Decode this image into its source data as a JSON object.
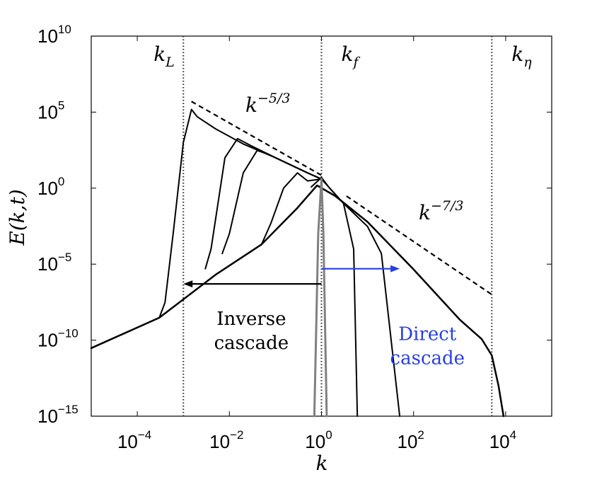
{
  "chart_data": {
    "type": "line",
    "xscale": "log",
    "yscale": "log",
    "xlabel": "k",
    "ylabel": "E(k,t)",
    "xlim": [
      1e-05,
      100000
    ],
    "ylim": [
      1e-15,
      10000000000.0
    ],
    "x_ticks": [
      {
        "value": 0.0001,
        "base": "10",
        "exp": "−4"
      },
      {
        "value": 0.01,
        "base": "10",
        "exp": "−2"
      },
      {
        "value": 1,
        "base": "10",
        "exp": "0"
      },
      {
        "value": 100,
        "base": "10",
        "exp": "2"
      },
      {
        "value": 10000,
        "base": "10",
        "exp": "4"
      }
    ],
    "y_ticks": [
      {
        "value": 1e-15,
        "base": "10",
        "exp": "−15"
      },
      {
        "value": 1e-10,
        "base": "10",
        "exp": "−10"
      },
      {
        "value": 1e-05,
        "base": "10",
        "exp": "−5"
      },
      {
        "value": 1,
        "base": "10",
        "exp": "0"
      },
      {
        "value": 100000,
        "base": "10",
        "exp": "5"
      },
      {
        "value": 10000000000.0,
        "base": "10",
        "exp": "10"
      }
    ],
    "vertical_lines": [
      {
        "name": "k_L",
        "label": "k",
        "sub": "L",
        "x": 0.001
      },
      {
        "name": "k_f",
        "label": "k",
        "sub": "f",
        "x": 1
      },
      {
        "name": "k_eta",
        "label": "k",
        "sub": "η",
        "x": 5000
      }
    ],
    "power_laws": [
      {
        "label": "k",
        "exp": "−5/3",
        "x": [
          0.0015,
          1
        ],
        "y": [
          500000,
          7
        ]
      },
      {
        "label": "k",
        "exp": "−7/3",
        "x": [
          3.5,
          5000
        ],
        "y": [
          0.3,
          1e-07
        ]
      }
    ],
    "series": [
      {
        "color": "#000000",
        "width": 2.5,
        "points": [
          [
            1e-05,
            3e-11
          ],
          [
            0.0003,
            3e-09
          ],
          [
            0.005,
            2e-06
          ],
          [
            0.05,
            0.0002
          ],
          [
            0.3,
            0.05
          ],
          [
            0.8,
            1.5
          ],
          [
            2,
            0.3
          ],
          [
            10,
            0.006
          ],
          [
            100,
            4.5e-06
          ],
          [
            1000,
            2.3e-09
          ],
          [
            3000,
            1.2e-10
          ],
          [
            5000,
            1e-11
          ],
          [
            7000,
            1e-13
          ],
          [
            9000,
            1e-15
          ]
        ]
      },
      {
        "color": "#000000",
        "width": 2,
        "points": [
          [
            1e-05,
            3e-11
          ],
          [
            0.0003,
            3e-09
          ],
          [
            0.0004,
            3e-08
          ],
          [
            0.0006,
            0.001
          ],
          [
            0.001,
            1000
          ],
          [
            0.0015,
            150000
          ],
          [
            0.002,
            50000
          ],
          [
            0.005,
            8000
          ],
          [
            0.02,
            800
          ],
          [
            0.1,
            100
          ],
          [
            0.5,
            10
          ],
          [
            1,
            4
          ]
        ]
      },
      {
        "color": "#000000",
        "width": 2,
        "points": [
          [
            0.003,
            5e-06
          ],
          [
            0.004,
            0.0001
          ],
          [
            0.008,
            100
          ],
          [
            0.015,
            1800
          ],
          [
            0.03,
            600
          ],
          [
            0.1,
            100
          ],
          [
            0.5,
            10
          ],
          [
            1,
            4
          ]
        ]
      },
      {
        "color": "#000000",
        "width": 2,
        "points": [
          [
            0.007,
            5e-05
          ],
          [
            0.01,
            0.001
          ],
          [
            0.02,
            10
          ],
          [
            0.04,
            300
          ],
          [
            0.06,
            200
          ],
          [
            0.1,
            100
          ],
          [
            0.5,
            10
          ],
          [
            1,
            4
          ]
        ]
      },
      {
        "color": "#000000",
        "width": 2,
        "points": [
          [
            0.05,
            0.0002
          ],
          [
            0.08,
            0.005
          ],
          [
            0.15,
            1
          ],
          [
            0.3,
            10
          ],
          [
            0.5,
            3
          ],
          [
            1,
            4
          ]
        ]
      },
      {
        "color": "#000000",
        "width": 2,
        "points": [
          [
            0.6,
            1.2
          ],
          [
            1,
            5
          ],
          [
            1.5,
            1
          ],
          [
            3,
            0.1
          ],
          [
            5,
            0.0001
          ],
          [
            6,
            1e-15
          ]
        ]
      },
      {
        "color": "#000000",
        "width": 2,
        "points": [
          [
            1,
            4
          ],
          [
            3,
            0.1
          ],
          [
            10,
            0.003
          ],
          [
            20,
            5e-05
          ],
          [
            50,
            1e-15
          ]
        ]
      },
      {
        "color": "#808080",
        "width": 3,
        "points": [
          [
            0.7,
            1e-15
          ],
          [
            0.85,
            0.001
          ],
          [
            1,
            4
          ],
          [
            1.1,
            0.001
          ],
          [
            1.3,
            1e-15
          ]
        ]
      }
    ],
    "arrows": [
      {
        "name": "inverse-cascade-arrow",
        "color": "#000000",
        "from": [
          1,
          5e-07
        ],
        "to": [
          0.001,
          5e-07
        ]
      },
      {
        "name": "direct-cascade-arrow",
        "color": "#2a3fe0",
        "from": [
          1,
          5e-06
        ],
        "to": [
          50,
          5e-06
        ]
      }
    ],
    "annotations": [
      {
        "name": "inverse-cascade-label",
        "lines": [
          "Inverse",
          "cascade"
        ],
        "x": 0.03,
        "y": 1e-09,
        "color": "#000000",
        "anchor": "middle"
      },
      {
        "name": "direct-cascade-label",
        "lines": [
          "Direct",
          "cascade"
        ],
        "x": 200,
        "y": 1e-10,
        "color": "#2a3fe0",
        "anchor": "middle"
      }
    ]
  }
}
